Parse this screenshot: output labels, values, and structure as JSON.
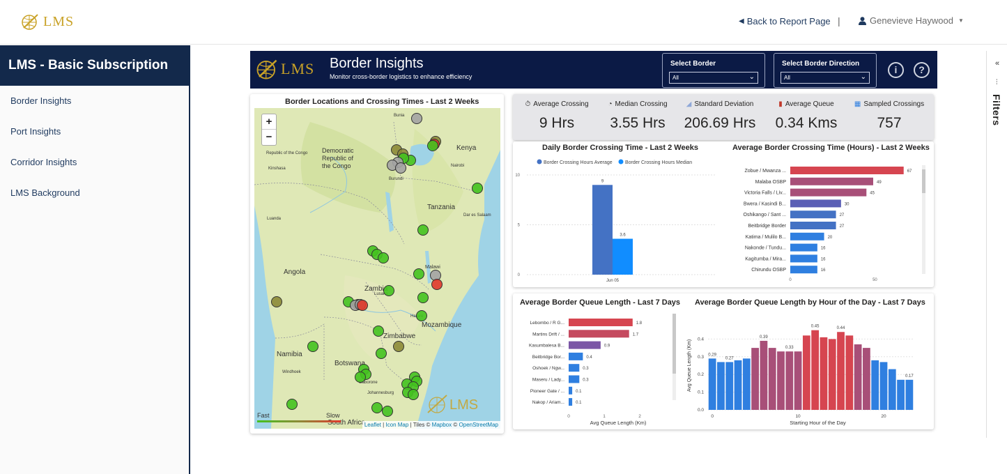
{
  "topbar": {
    "logo_text": "LMS",
    "back_label": "Back to Report Page",
    "separator": "|",
    "user_name": "Genevieve Haywood"
  },
  "sidebar": {
    "title": "LMS - Basic Subscription",
    "items": [
      {
        "label": "Border Insights"
      },
      {
        "label": "Port Insights"
      },
      {
        "label": "Corridor Insights"
      },
      {
        "label": "LMS Background"
      }
    ]
  },
  "filters_pane": {
    "label": "Filters"
  },
  "report_header": {
    "logo_text": "LMS",
    "title": "Border Insights",
    "subtitle": "Monitor cross-border logistics to enhance efficiency",
    "slicer_border": {
      "label": "Select Border",
      "value": "All"
    },
    "slicer_direction": {
      "label": "Select Border Direction",
      "value": "All"
    }
  },
  "map": {
    "title": "Border Locations and Crossing Times - Last 2 Weeks",
    "zoom_in": "+",
    "zoom_out": "−",
    "place_labels": [
      "Kenya",
      "Democratic Republic of the Congo",
      "Tanzania",
      "Angola",
      "Zambia",
      "Malawi",
      "Mozambique",
      "Zimbabwe",
      "Namibia",
      "Botswana",
      "South Africa",
      "Republic of the Congo",
      "Nairobi",
      "Kinshasa",
      "Luanda",
      "Lusaka",
      "Harare",
      "Windhoek",
      "Johannesburg",
      "Bunia",
      "Burundi",
      "Gaborone",
      "Dar es Salaam"
    ],
    "legend_fast": "Fast",
    "legend_slow": "Slow",
    "watermark": "LMS",
    "attribution": {
      "leaflet": "Leaflet",
      "iconmap": "Icon Map",
      "tiles_prefix": "Tiles ©",
      "mapbox": "Mapbox",
      "osm_prefix": "©",
      "osm": "OpenStreetMap"
    },
    "colors": {
      "fast": "#44c21f",
      "medium": "#8c8a36",
      "slow": "#e0392c",
      "nodata": "#a3a3a3"
    }
  },
  "kpis": [
    {
      "icon": "stopwatch-icon",
      "glyph": "⏱",
      "label": "Average Crossing",
      "value": "9 Hrs"
    },
    {
      "icon": "clock-icon",
      "glyph": "◔",
      "label": "Median Crossing",
      "value": "3.55 Hrs"
    },
    {
      "icon": "chart-area-icon",
      "glyph": "◢",
      "label": "Standard Deviation",
      "value": "206.69 Hrs"
    },
    {
      "icon": "traffic-light-icon",
      "glyph": "▮",
      "label": "Average Queue",
      "value": "0.34 Kms"
    },
    {
      "icon": "grid-icon",
      "glyph": "▦",
      "label": "Sampled Crossings",
      "value": "757"
    }
  ],
  "chart_data": [
    {
      "type": "bar",
      "title": "Daily Border Crossing Time - Last 2 Weeks",
      "legend": [
        "Border Crossing Hours Average",
        "Border Crossing Hours Median"
      ],
      "categories": [
        "Jun 05"
      ],
      "series": [
        {
          "name": "Border Crossing Hours Average",
          "values": [
            9
          ],
          "color": "#4472c4"
        },
        {
          "name": "Border Crossing Hours Median",
          "values": [
            3.6
          ],
          "color": "#118dff"
        }
      ],
      "ylim": [
        0,
        10
      ],
      "yticks": [
        "10",
        "5",
        "0"
      ],
      "data_labels": [
        "9",
        "3.6"
      ]
    },
    {
      "type": "bar",
      "orientation": "horizontal",
      "title": "Average Border Crossing Time (Hours) - Last 2 Weeks",
      "categories": [
        "Zobue / Mwanza ...",
        "Malaba OSBP",
        "Victoria Falls / Liv...",
        "Bwera / Kasindi B...",
        "Oshikango / Sant ...",
        "Beitbridge Border",
        "Katima / Mulilo B...",
        "Nakonde / Tundu...",
        "Kagitumba / Mira...",
        "Chirundu OSBP"
      ],
      "values": [
        67,
        49,
        45,
        30,
        27,
        27,
        20,
        16,
        16,
        16
      ],
      "colors": [
        "#d64550",
        "#a84f78",
        "#a84f78",
        "#5b5fb5",
        "#4472c4",
        "#4472c4",
        "#2f7fe0",
        "#2f7fe0",
        "#2f7fe0",
        "#2f7fe0"
      ],
      "xlim": [
        0,
        70
      ],
      "xticks": [
        "0",
        "50"
      ]
    },
    {
      "type": "bar",
      "orientation": "horizontal",
      "title": "Average Border Queue Length - Last 7 Days",
      "xlabel": "Avg Queue Length (Km)",
      "categories": [
        "Lebombo / R G...",
        "Martins Drift / ...",
        "Kasumbalesa B...",
        "Beitbridge Bor...",
        "Oshoek / Ngw...",
        "Maseru / Lady...",
        "Pioneer Gate / ...",
        "Nakop / Ariam..."
      ],
      "values": [
        1.8,
        1.7,
        0.9,
        0.4,
        0.3,
        0.3,
        0.1,
        0.1
      ],
      "colors": [
        "#d64550",
        "#c54a5f",
        "#7b56a6",
        "#2f7fe0",
        "#2f7fe0",
        "#2f7fe0",
        "#2f7fe0",
        "#2f7fe0"
      ],
      "xlim": [
        0,
        2
      ],
      "xticks": [
        "0",
        "1",
        "2"
      ]
    },
    {
      "type": "bar",
      "title": "Average Border Queue Length by Hour of the Day - Last 7 Days",
      "xlabel": "Starting Hour of the Day",
      "ylabel": "Avg Queue Length (Km)",
      "categories": [
        0,
        1,
        2,
        3,
        4,
        5,
        6,
        7,
        8,
        9,
        10,
        11,
        12,
        13,
        14,
        15,
        16,
        17,
        18,
        19,
        20,
        21,
        22,
        23
      ],
      "values": [
        0.29,
        0.27,
        0.27,
        0.28,
        0.29,
        0.35,
        0.39,
        0.35,
        0.33,
        0.33,
        0.33,
        0.42,
        0.45,
        0.41,
        0.4,
        0.44,
        0.42,
        0.37,
        0.35,
        0.28,
        0.27,
        0.23,
        0.17,
        0.17
      ],
      "data_labels": {
        "0": "0.29",
        "2": "0.27",
        "6": "0.39",
        "9": "0.33",
        "12": "0.45",
        "15": "0.44",
        "23": "0.17"
      },
      "ylim": [
        0,
        0.5
      ],
      "yticks": [
        "0.0",
        "0.1",
        "0.2",
        "0.3",
        "0.4"
      ],
      "xticks": [
        "0",
        "10",
        "20"
      ],
      "color_low": "#2f7fe0",
      "color_mid": "#a84f78",
      "color_high": "#d64550"
    }
  ]
}
